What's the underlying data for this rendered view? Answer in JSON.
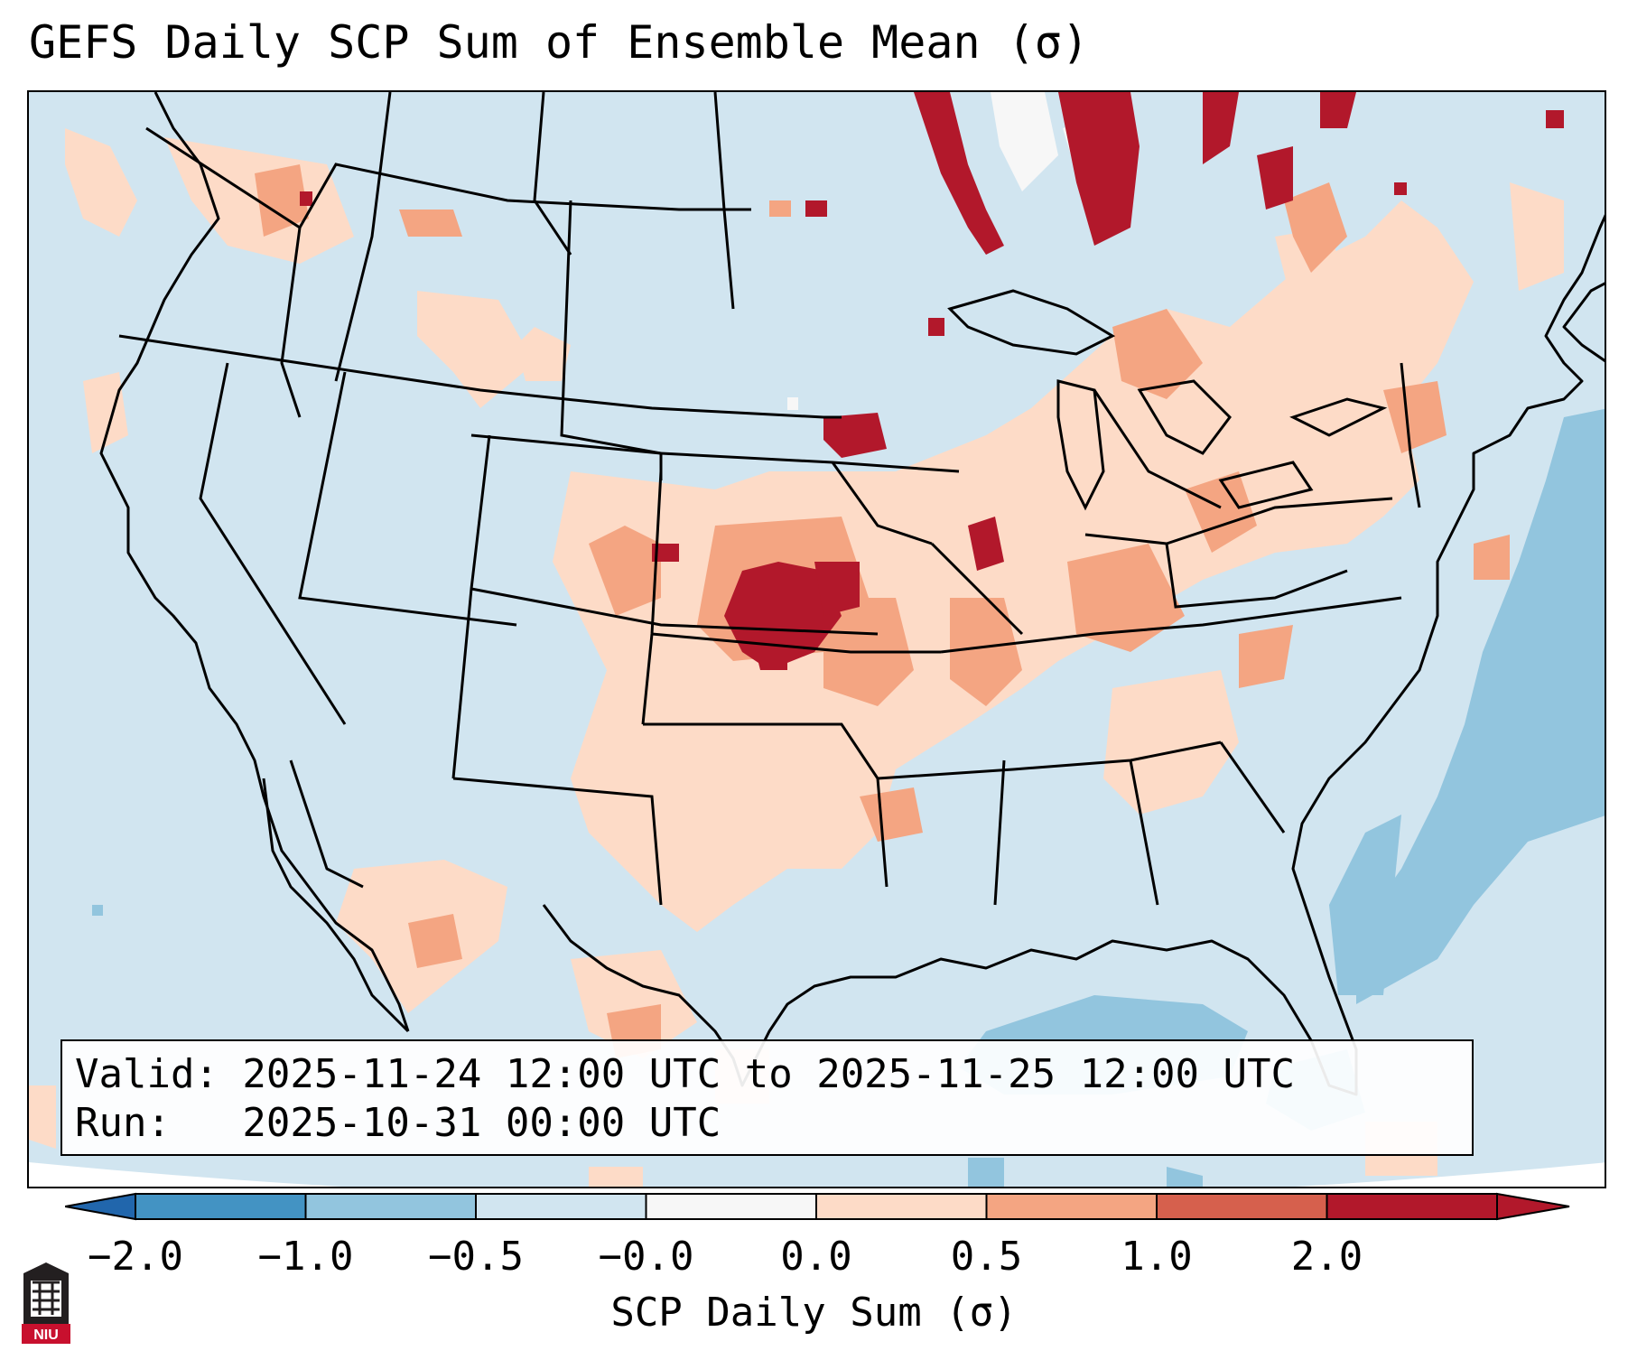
{
  "title": "GEFS Daily SCP Sum of Ensemble Mean (σ)",
  "info": {
    "valid_line": "Valid: 2025-11-24 12:00 UTC to 2025-11-25 12:00 UTC",
    "run_line": "Run:   2025-10-31 00:00 UTC"
  },
  "colorbar": {
    "label": "SCP Daily Sum (σ)",
    "ticks": [
      "−2.0",
      "−1.0",
      "−0.5",
      "−0.0",
      "0.0",
      "0.5",
      "1.0",
      "2.0"
    ],
    "colors": [
      "#4393c3",
      "#92c5de",
      "#d1e5f0",
      "#f7f7f7",
      "#fddbc7",
      "#f4a582",
      "#d6604d",
      "#b2182b"
    ],
    "extend_low_color": "#2166ac",
    "extend_high_color": "#b2182b"
  },
  "logo": {
    "text": "NIU",
    "color": "#c8102e"
  },
  "map_colors": {
    "background": "#d1e5f0",
    "outline": "#000000"
  }
}
